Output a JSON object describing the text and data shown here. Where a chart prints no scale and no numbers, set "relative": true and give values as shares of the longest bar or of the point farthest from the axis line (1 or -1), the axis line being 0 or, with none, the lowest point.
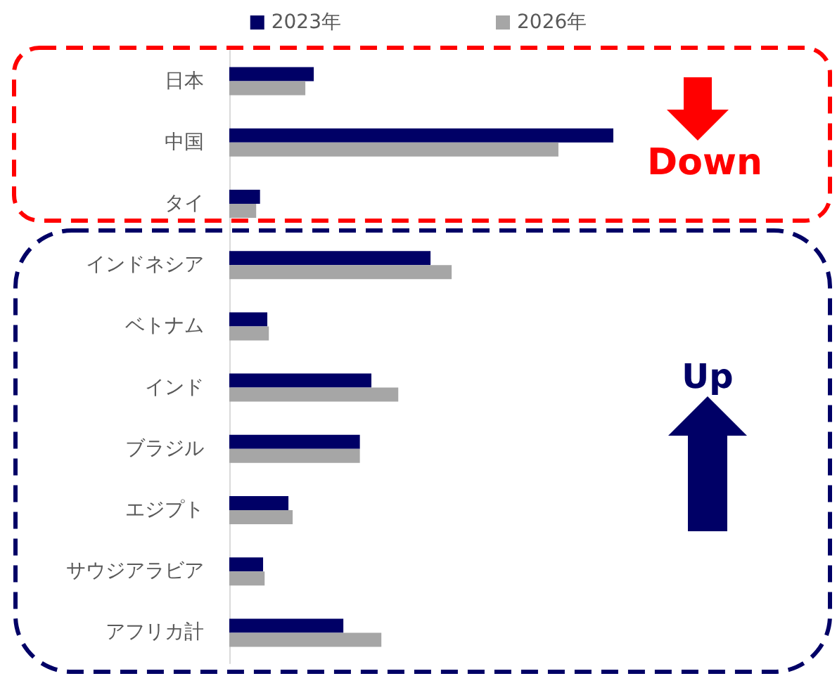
{
  "chart_data": {
    "type": "bar",
    "orientation": "horizontal",
    "relative": true,
    "legend": "top",
    "categories": [
      "日本",
      "中国",
      "タイ",
      "インドネシア",
      "ベトナム",
      "インド",
      "ブラジル",
      "エジプト",
      "サウジアラビア",
      "アフリカ計"
    ],
    "series": [
      {
        "name": "2023年",
        "color": "#000066",
        "values": [
          0.22,
          1,
          0.08,
          0.524,
          0.099,
          0.37,
          0.34,
          0.154,
          0.088,
          0.297
        ]
      },
      {
        "name": "2026年",
        "color": "#a6a6a6",
        "values": [
          0.198,
          0.857,
          0.07,
          0.579,
          0.103,
          0.44,
          0.34,
          0.165,
          0.092,
          0.396
        ]
      }
    ],
    "annotations": [
      "Down",
      "Up"
    ]
  }
}
